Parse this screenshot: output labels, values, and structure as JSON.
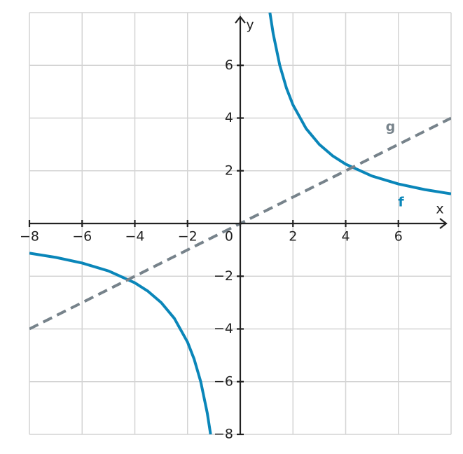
{
  "chart_data": {
    "type": "line",
    "x_label": "x",
    "y_label": "y",
    "x": [
      -8,
      -7,
      -6,
      -5,
      -4,
      -3.5,
      -3,
      -2.5,
      -2,
      -1.75,
      -1.5,
      -1.25,
      -1.125,
      0,
      1.125,
      1.25,
      1.5,
      1.75,
      2,
      2.5,
      3,
      3.5,
      4,
      5,
      6,
      7,
      8
    ],
    "series": [
      {
        "name": "f",
        "color": "#0a86b9",
        "dash": false,
        "values": [
          -1.125,
          -1.286,
          -1.5,
          -1.8,
          -2.25,
          -2.571,
          -3,
          -3.6,
          -4.5,
          -5.143,
          -6,
          -7.2,
          -8,
          null,
          8,
          7.2,
          6,
          5.143,
          4.5,
          3.6,
          3,
          2.571,
          2.25,
          1.8,
          1.5,
          1.286,
          1.125
        ]
      },
      {
        "name": "g",
        "color": "#77838b",
        "dash": true,
        "values": [
          -4,
          -3.5,
          -3,
          -2.5,
          -2,
          -1.75,
          -1.5,
          -1.25,
          -1,
          -0.875,
          -0.75,
          -0.625,
          -0.5625,
          0,
          0.5625,
          0.625,
          0.75,
          0.875,
          1,
          1.25,
          1.5,
          1.75,
          2,
          2.5,
          3,
          3.5,
          4
        ]
      }
    ],
    "xlim": [
      -8,
      8
    ],
    "ylim": [
      -8,
      8
    ],
    "xticks": [
      {
        "value": -8,
        "label": "−8"
      },
      {
        "value": -6,
        "label": "−6"
      },
      {
        "value": -4,
        "label": "−4"
      },
      {
        "value": -2,
        "label": "−2"
      },
      0,
      2,
      4,
      6
    ],
    "yticks": [
      {
        "value": -8,
        "label": "−8"
      },
      {
        "value": -6,
        "label": "−6"
      },
      {
        "value": -4,
        "label": "−4"
      },
      {
        "value": -2,
        "label": "−2"
      },
      2,
      4,
      6
    ],
    "grid": true
  }
}
